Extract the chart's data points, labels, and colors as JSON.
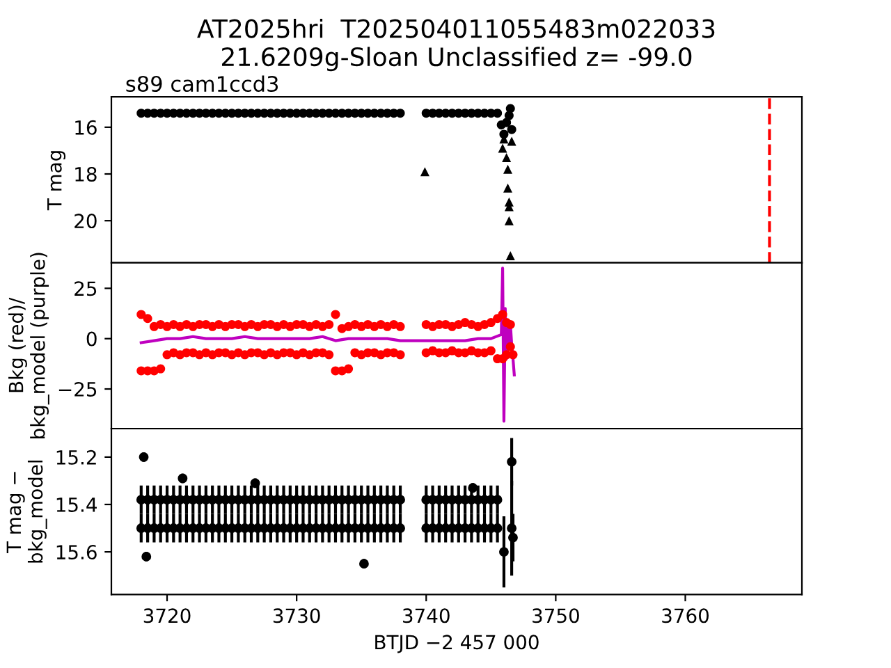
{
  "chart_data": [
    {
      "type": "scatter",
      "title": "AT2025hri  T202504011055483m022033\n21.6209g-Sloan Unclassified z= -99.0",
      "ylabel": "T mag",
      "annotations": [
        "s89 cam1ccd3"
      ],
      "xlim": [
        3715.7,
        3769.0
      ],
      "ylim": [
        21.8,
        14.7
      ],
      "yticks": [
        16,
        18,
        20
      ],
      "tick_labels": "y",
      "series": [
        {
          "color": "#000000",
          "marker": "circle",
          "x": [
            3718,
            3718.5,
            3719,
            3719.5,
            3720,
            3720.5,
            3721,
            3721.5,
            3722,
            3722.5,
            3723,
            3723.5,
            3724,
            3724.5,
            3725,
            3725.5,
            3726,
            3726.5,
            3727,
            3727.5,
            3728,
            3728.5,
            3729,
            3729.5,
            3730,
            3730.5,
            3731,
            3731.5,
            3732,
            3732.5,
            3733,
            3733.5,
            3734,
            3734.5,
            3735,
            3735.5,
            3736,
            3736.5,
            3737,
            3737.5,
            3738,
            3740,
            3740.5,
            3741,
            3741.5,
            3742,
            3742.5,
            3743,
            3743.5,
            3744,
            3744.5,
            3745,
            3745.5,
            3745.8,
            3746.0,
            3746.2,
            3746.4,
            3746.5,
            3746.6
          ],
          "values": [
            15.4,
            15.4,
            15.4,
            15.4,
            15.4,
            15.4,
            15.4,
            15.4,
            15.4,
            15.4,
            15.4,
            15.4,
            15.4,
            15.4,
            15.4,
            15.4,
            15.4,
            15.4,
            15.4,
            15.4,
            15.4,
            15.4,
            15.4,
            15.4,
            15.4,
            15.4,
            15.4,
            15.4,
            15.4,
            15.4,
            15.4,
            15.4,
            15.4,
            15.4,
            15.4,
            15.4,
            15.4,
            15.4,
            15.4,
            15.4,
            15.4,
            15.4,
            15.4,
            15.4,
            15.4,
            15.4,
            15.4,
            15.4,
            15.4,
            15.4,
            15.4,
            15.4,
            15.4,
            15.9,
            16.3,
            15.8,
            15.5,
            15.2,
            16.1
          ]
        },
        {
          "color": "#000000",
          "marker": "triangle",
          "x": [
            3739.9,
            3745.9,
            3746.0,
            3746.2,
            3746.3,
            3746.3,
            3746.4,
            3746.4,
            3746.4,
            3746.5,
            3746.6
          ],
          "values": [
            17.9,
            16.9,
            16.5,
            17.3,
            17.8,
            18.6,
            19.2,
            19.4,
            20.0,
            21.5,
            16.6
          ]
        }
      ],
      "ref_lines": [
        {
          "axis": "x",
          "value": 3766.5,
          "color": "#ff0000",
          "line_style": "dashed"
        }
      ]
    },
    {
      "type": "scatter",
      "ylabel": "Bkg (red)/\nbkg_model (purple)",
      "xlim": [
        3715.7,
        3769.0
      ],
      "ylim": [
        -44.7,
        37.7
      ],
      "yticks": [
        25,
        0,
        {
          "value": -25,
          "label": "−25"
        }
      ],
      "tick_labels": "y",
      "series": [
        {
          "color": "#ff0000",
          "marker": "circle",
          "x": [
            3718,
            3718.5,
            3719,
            3719.5,
            3720,
            3720.5,
            3721,
            3721.5,
            3722,
            3722.5,
            3723,
            3723.5,
            3724,
            3724.5,
            3725,
            3725.5,
            3726,
            3726.5,
            3727,
            3727.5,
            3728,
            3728.5,
            3729,
            3729.5,
            3730,
            3730.5,
            3731,
            3731.5,
            3732,
            3732.5,
            3733,
            3733.5,
            3734,
            3734.5,
            3735,
            3735.5,
            3736,
            3736.5,
            3737,
            3737.5,
            3738,
            3740,
            3740.5,
            3741,
            3741.5,
            3742,
            3742.5,
            3743,
            3743.5,
            3744,
            3744.5,
            3745,
            3745.5
          ],
          "values": [
            12,
            10,
            6,
            7,
            6,
            7,
            6,
            7,
            6,
            7,
            7,
            6,
            7,
            6,
            7,
            7,
            6,
            7,
            6,
            7,
            7,
            6,
            7,
            6,
            7,
            7,
            6,
            7,
            6,
            7,
            12,
            5,
            6,
            7,
            6,
            7,
            6,
            7,
            6,
            7,
            6,
            7,
            6,
            7,
            7,
            6,
            7,
            8,
            7,
            6,
            7,
            8,
            10
          ]
        },
        {
          "color": "#ff0000",
          "marker": "circle",
          "x": [
            3718,
            3718.5,
            3719,
            3719.5,
            3720,
            3720.5,
            3721,
            3721.5,
            3722,
            3722.5,
            3723,
            3723.5,
            3724,
            3724.5,
            3725,
            3725.5,
            3726,
            3726.5,
            3727,
            3727.5,
            3728,
            3728.5,
            3729,
            3729.5,
            3730,
            3730.5,
            3731,
            3731.5,
            3732,
            3732.5,
            3733,
            3733.5,
            3734,
            3734.5,
            3735,
            3735.5,
            3736,
            3736.5,
            3737,
            3737.5,
            3738,
            3740,
            3740.5,
            3741,
            3741.5,
            3742,
            3742.5,
            3743,
            3743.5,
            3744,
            3744.5,
            3745,
            3745.5
          ],
          "values": [
            -16,
            -16,
            -16,
            -15,
            -8,
            -7,
            -8,
            -7,
            -7,
            -8,
            -7,
            -8,
            -7,
            -7,
            -8,
            -7,
            -8,
            -7,
            -7,
            -8,
            -7,
            -8,
            -7,
            -7,
            -8,
            -7,
            -8,
            -7,
            -7,
            -8,
            -16,
            -16,
            -15,
            -7,
            -8,
            -7,
            -7,
            -8,
            -7,
            -7,
            -8,
            -7,
            -6,
            -7,
            -7,
            -6,
            -7,
            -7,
            -6,
            -7,
            -7,
            -6,
            -10
          ]
        },
        {
          "color": "#ff0000",
          "marker": "circle",
          "x": [
            3745.9,
            3746.2,
            3746.5,
            3745.9,
            3746.2,
            3746.5,
            3746.7
          ],
          "values": [
            12,
            8,
            7,
            -10,
            -8,
            -4,
            -8
          ]
        },
        {
          "type": "line",
          "color": "#bf00bf",
          "x": [
            3718,
            3719,
            3720,
            3721,
            3722,
            3723,
            3724,
            3725,
            3726,
            3727,
            3728,
            3729,
            3730,
            3731,
            3732,
            3733,
            3734,
            3735,
            3736,
            3737,
            3738,
            3739,
            3740,
            3741,
            3742,
            3743,
            3744,
            3745,
            3745.8,
            3745.9,
            3746.0,
            3746.1,
            3746.2,
            3746.3,
            3746.4,
            3746.5,
            3746.6,
            3746.7,
            3746.8
          ],
          "values": [
            -2,
            -1,
            0,
            0,
            1,
            0,
            0,
            0,
            1,
            0,
            0,
            0,
            0,
            0,
            1,
            -1,
            0,
            0,
            0,
            0,
            -1,
            -1,
            -1,
            -1,
            -1,
            -1,
            0,
            0,
            2,
            35,
            -41,
            15,
            -10,
            8,
            -5,
            7,
            -3,
            -10,
            -18
          ]
        }
      ]
    },
    {
      "type": "scatter",
      "xlabel": "BTJD −2 457 000",
      "ylabel": "T mag −\nbkg_model",
      "xlim": [
        3715.7,
        3769.0
      ],
      "ylim": [
        15.78,
        15.08
      ],
      "xticks": [
        3720,
        3730,
        3740,
        3750,
        3760
      ],
      "yticks": [
        15.2,
        15.4,
        15.6
      ],
      "series": [
        {
          "color": "#000000",
          "marker": "circle",
          "x": [
            3718,
            3718.5,
            3719,
            3719.5,
            3720,
            3720.5,
            3721,
            3721.5,
            3722,
            3722.5,
            3723,
            3723.5,
            3724,
            3724.5,
            3725,
            3725.5,
            3726,
            3726.5,
            3727,
            3727.5,
            3728,
            3728.5,
            3729,
            3729.5,
            3730,
            3730.5,
            3731,
            3731.5,
            3732,
            3732.5,
            3733,
            3733.5,
            3734,
            3734.5,
            3735,
            3735.5,
            3736,
            3736.5,
            3737,
            3737.5,
            3738,
            3740,
            3740.5,
            3741,
            3741.5,
            3742,
            3742.5,
            3743,
            3743.5,
            3744,
            3744.5,
            3745,
            3745.5
          ],
          "values": [
            15.38,
            15.38,
            15.38,
            15.38,
            15.38,
            15.38,
            15.38,
            15.38,
            15.38,
            15.38,
            15.38,
            15.38,
            15.38,
            15.38,
            15.38,
            15.38,
            15.38,
            15.38,
            15.38,
            15.38,
            15.38,
            15.38,
            15.38,
            15.38,
            15.38,
            15.38,
            15.38,
            15.38,
            15.38,
            15.38,
            15.38,
            15.38,
            15.38,
            15.38,
            15.38,
            15.38,
            15.38,
            15.38,
            15.38,
            15.38,
            15.38,
            15.38,
            15.38,
            15.38,
            15.38,
            15.38,
            15.38,
            15.38,
            15.38,
            15.38,
            15.38,
            15.38,
            15.38
          ],
          "errors": [
            0.06,
            0.06,
            0.06,
            0.06,
            0.06,
            0.06,
            0.06,
            0.06,
            0.06,
            0.06,
            0.06,
            0.06,
            0.06,
            0.06,
            0.06,
            0.06,
            0.06,
            0.06,
            0.06,
            0.06,
            0.06,
            0.06,
            0.06,
            0.06,
            0.06,
            0.06,
            0.06,
            0.06,
            0.06,
            0.06,
            0.06,
            0.06,
            0.06,
            0.06,
            0.06,
            0.06,
            0.06,
            0.06,
            0.06,
            0.06,
            0.06,
            0.06,
            0.06,
            0.06,
            0.06,
            0.06,
            0.06,
            0.06,
            0.06,
            0.06,
            0.06,
            0.06,
            0.06
          ]
        },
        {
          "color": "#000000",
          "marker": "circle",
          "x": [
            3718,
            3718.5,
            3719,
            3719.5,
            3720,
            3720.5,
            3721,
            3721.5,
            3722,
            3722.5,
            3723,
            3723.5,
            3724,
            3724.5,
            3725,
            3725.5,
            3726,
            3726.5,
            3727,
            3727.5,
            3728,
            3728.5,
            3729,
            3729.5,
            3730,
            3730.5,
            3731,
            3731.5,
            3732,
            3732.5,
            3733,
            3733.5,
            3734,
            3734.5,
            3735,
            3735.5,
            3736,
            3736.5,
            3737,
            3737.5,
            3738,
            3740,
            3740.5,
            3741,
            3741.5,
            3742,
            3742.5,
            3743,
            3743.5,
            3744,
            3744.5,
            3745,
            3745.5
          ],
          "values": [
            15.5,
            15.5,
            15.5,
            15.5,
            15.5,
            15.5,
            15.5,
            15.5,
            15.5,
            15.5,
            15.5,
            15.5,
            15.5,
            15.5,
            15.5,
            15.5,
            15.5,
            15.5,
            15.5,
            15.5,
            15.5,
            15.5,
            15.5,
            15.5,
            15.5,
            15.5,
            15.5,
            15.5,
            15.5,
            15.5,
            15.5,
            15.5,
            15.5,
            15.5,
            15.5,
            15.5,
            15.5,
            15.5,
            15.5,
            15.5,
            15.5,
            15.5,
            15.5,
            15.5,
            15.5,
            15.5,
            15.5,
            15.5,
            15.5,
            15.5,
            15.5,
            15.5,
            15.5
          ],
          "errors": [
            0.06,
            0.06,
            0.06,
            0.06,
            0.06,
            0.06,
            0.06,
            0.06,
            0.06,
            0.06,
            0.06,
            0.06,
            0.06,
            0.06,
            0.06,
            0.06,
            0.06,
            0.06,
            0.06,
            0.06,
            0.06,
            0.06,
            0.06,
            0.06,
            0.06,
            0.06,
            0.06,
            0.06,
            0.06,
            0.06,
            0.06,
            0.06,
            0.06,
            0.06,
            0.06,
            0.06,
            0.06,
            0.06,
            0.06,
            0.06,
            0.06,
            0.06,
            0.06,
            0.06,
            0.06,
            0.06,
            0.06,
            0.06,
            0.06,
            0.06,
            0.06,
            0.06,
            0.06
          ]
        },
        {
          "color": "#000000",
          "marker": "circle",
          "x": [
            3718.2,
            3718.4,
            3721.2,
            3726.8,
            3735.2,
            3743.6,
            3746.0,
            3746.6,
            3746.6,
            3746.7
          ],
          "values": [
            15.2,
            15.62,
            15.29,
            15.31,
            15.65,
            15.33,
            15.6,
            15.22,
            15.5,
            15.54
          ],
          "errors": [
            0.02,
            0.02,
            0.02,
            0.02,
            0.02,
            0.02,
            0.15,
            0.1,
            0.2,
            0.1
          ]
        }
      ]
    }
  ]
}
